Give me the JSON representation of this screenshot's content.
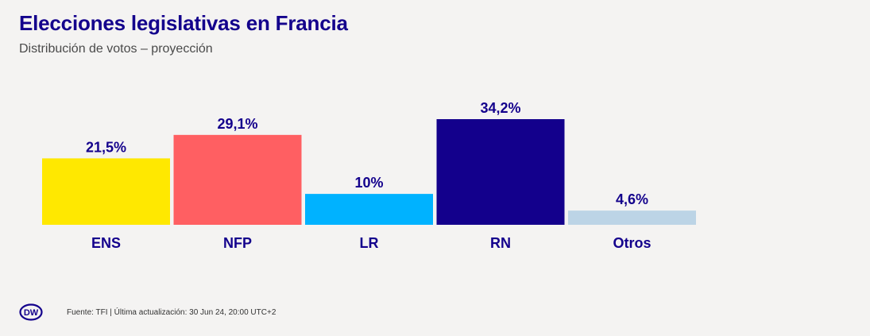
{
  "header": {
    "title": "Elecciones legislativas en Francia",
    "subtitle": "Distribución de votos – proyección"
  },
  "footer": {
    "logo_text": "DW",
    "source": "Fuente: TFI | Última actualización: 30 Jun 24, 20:00 UTC+2"
  },
  "colors": {
    "title": "#13008c",
    "label": "#13008c",
    "background": "#f4f3f2"
  },
  "chart_data": {
    "type": "bar",
    "title": "Elecciones legislativas en Francia",
    "subtitle": "Distribución de votos – proyección",
    "categories": [
      "ENS",
      "NFP",
      "LR",
      "RN",
      "Otros"
    ],
    "values": [
      21.5,
      29.1,
      10,
      34.2,
      4.6
    ],
    "value_labels": [
      "21,5%",
      "29,1%",
      "10%",
      "34,2%",
      "4,6%"
    ],
    "colors": [
      "#ffe800",
      "#ff5f62",
      "#00b2ff",
      "#13008c",
      "#bcd4e6"
    ],
    "xlabel": "",
    "ylabel": "",
    "ylim": [
      0,
      34.2
    ],
    "grid": false,
    "legend": "none"
  }
}
